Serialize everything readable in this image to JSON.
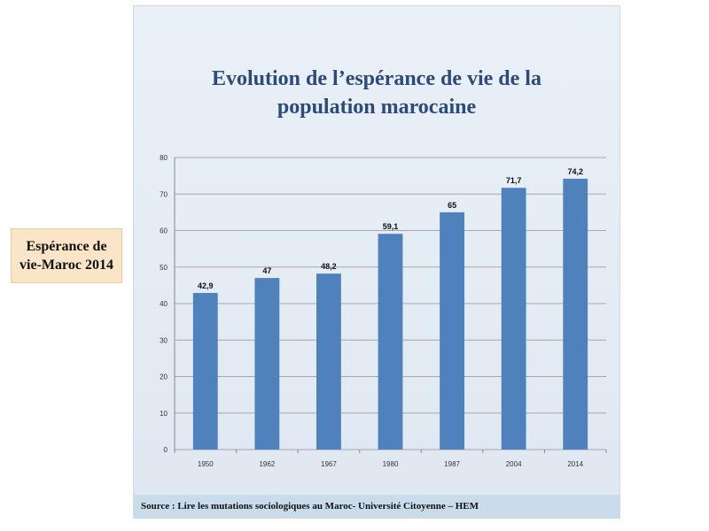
{
  "side_label": {
    "line1": "Espérance de",
    "line2": "vie-Maroc 2014"
  },
  "source": "Source : Lire les mutations sociologiques au Maroc- Université Citoyenne – HEM",
  "colors": {
    "bar": "#4f81bd",
    "title": "#2c4a7a",
    "panel": "#e6eef6"
  },
  "chart_data": {
    "type": "bar",
    "title_line1": "Evolution de l’espérance de vie de la",
    "title_line2": "population marocaine",
    "categories": [
      "1950",
      "1962",
      "1967",
      "1980",
      "1987",
      "2004",
      "2014"
    ],
    "values": [
      42.9,
      47,
      48.2,
      59.1,
      65,
      71.7,
      74.2
    ],
    "data_labels": [
      "42,9",
      "47",
      "48,2",
      "59,1",
      "65",
      "71,7",
      "74,2"
    ],
    "ylim": [
      0,
      80
    ],
    "yticks": [
      "0",
      "10",
      "20",
      "30",
      "40",
      "50",
      "60",
      "70",
      "80"
    ],
    "xlabel": "",
    "ylabel": "",
    "grid": true,
    "legend": "none"
  }
}
